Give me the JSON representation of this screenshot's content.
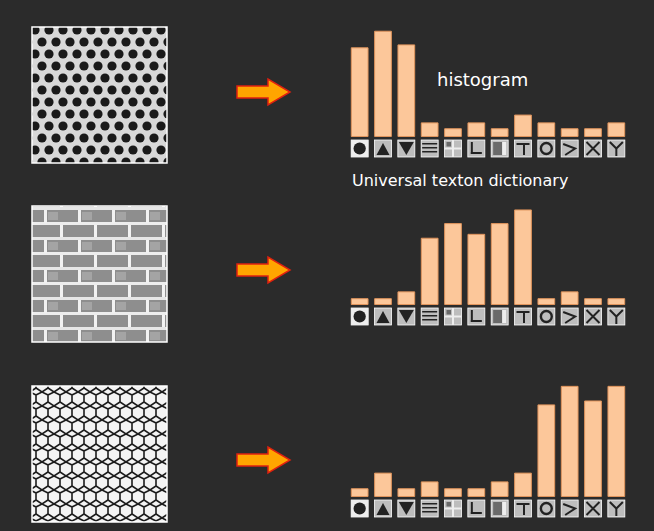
{
  "chart_data": [
    {
      "type": "bar",
      "annotations": [
        "histogram",
        "Universal texton dictionary"
      ],
      "categories": [
        null,
        null,
        null,
        null,
        null,
        null,
        null,
        null,
        null,
        null,
        null,
        null
      ],
      "values": [
        92,
        109,
        95,
        15,
        9,
        15,
        9,
        23,
        15,
        9,
        9,
        15
      ],
      "color": "#fcc79a",
      "ylim": [
        0,
        120
      ],
      "tick_labels": false,
      "grid": false
    },
    {
      "type": "bar",
      "categories": [
        null,
        null,
        null,
        null,
        null,
        null,
        null,
        null,
        null,
        null,
        null,
        null
      ],
      "values": [
        7,
        7,
        14,
        69,
        84,
        73,
        84,
        98,
        7,
        14,
        7,
        7
      ],
      "color": "#fcc79a",
      "ylim": [
        0,
        120
      ],
      "tick_labels": false,
      "grid": false
    },
    {
      "type": "bar",
      "categories": [
        null,
        null,
        null,
        null,
        null,
        null,
        null,
        null,
        null,
        null,
        null,
        null
      ],
      "values": [
        9,
        25,
        9,
        16,
        9,
        9,
        16,
        25,
        95,
        114,
        99,
        114
      ],
      "color": "#fcc79a",
      "ylim": [
        0,
        120
      ],
      "tick_labels": false,
      "grid": false
    }
  ]
}
